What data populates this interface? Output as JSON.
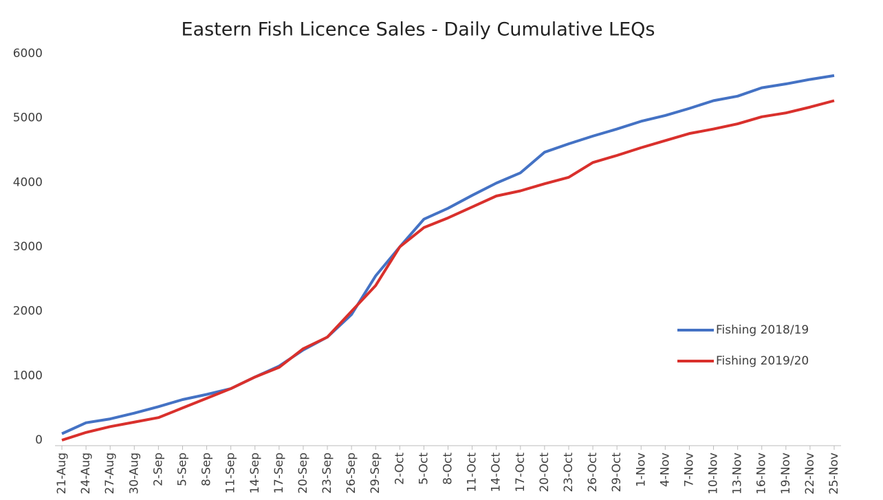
{
  "chart_data": {
    "type": "line",
    "title": "Eastern Fish Licence Sales - Daily Cumulative LEQs",
    "categories": [
      "21-Aug",
      "24-Aug",
      "27-Aug",
      "30-Aug",
      "2-Sep",
      "5-Sep",
      "8-Sep",
      "11-Sep",
      "14-Sep",
      "17-Sep",
      "20-Sep",
      "23-Sep",
      "26-Sep",
      "29-Sep",
      "2-Oct",
      "5-Oct",
      "8-Oct",
      "11-Oct",
      "14-Oct",
      "17-Oct",
      "20-Oct",
      "23-Oct",
      "26-Oct",
      "29-Oct",
      "1-Nov",
      "4-Nov",
      "7-Nov",
      "10-Nov",
      "13-Nov",
      "16-Nov",
      "19-Nov",
      "22-Nov",
      "25-Nov"
    ],
    "series": [
      {
        "name": "Fishing 2018/19",
        "color": "#4472c4",
        "values": [
          100,
          270,
          330,
          420,
          520,
          630,
          710,
          800,
          980,
          1150,
          1400,
          1600,
          1950,
          2550,
          3000,
          3430,
          3600,
          3800,
          3990,
          4150,
          4470,
          4600,
          4720,
          4830,
          4950,
          5040,
          5150,
          5270,
          5340,
          5470,
          5530,
          5600,
          5660
        ]
      },
      {
        "name": "Fishing 2019/20",
        "color": "#d9302c",
        "values": [
          0,
          120,
          210,
          280,
          350,
          500,
          650,
          800,
          980,
          1130,
          1420,
          1600,
          2000,
          2400,
          3000,
          3300,
          3450,
          3620,
          3790,
          3870,
          3980,
          4080,
          4310,
          4420,
          4540,
          4650,
          4760,
          4830,
          4910,
          5020,
          5080,
          5170,
          5270
        ]
      }
    ],
    "ylim": [
      0,
      6000
    ],
    "yticks": [
      0,
      1000,
      2000,
      3000,
      4000,
      5000,
      6000
    ],
    "grid": false,
    "legend": "right"
  }
}
